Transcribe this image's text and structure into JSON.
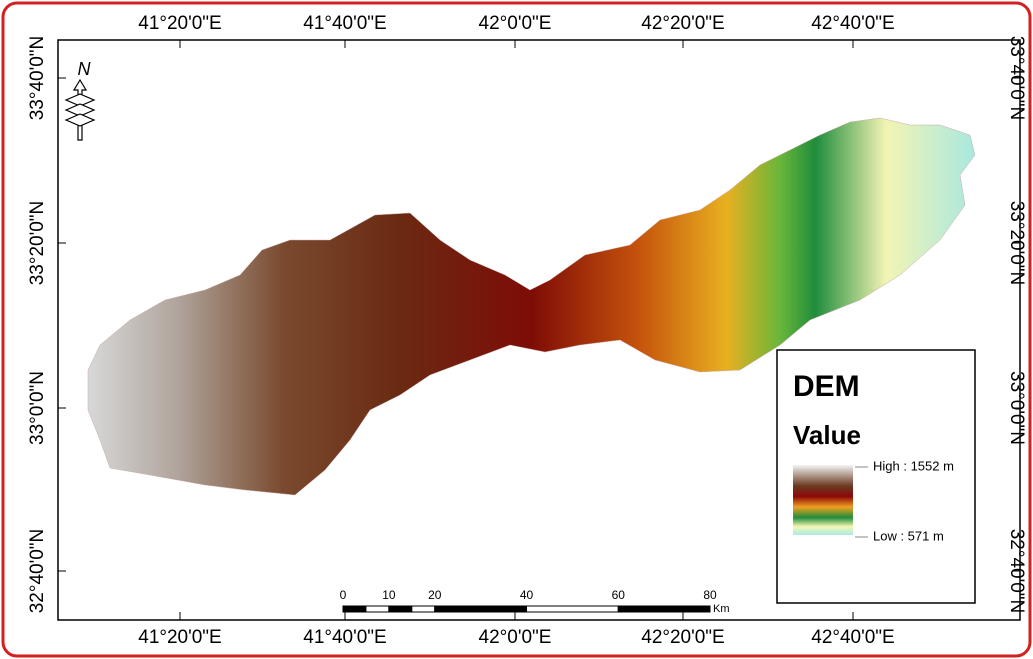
{
  "map": {
    "top_labels": [
      "41°20'0\"E",
      "41°40'0\"E",
      "42°0'0\"E",
      "42°20'0\"E",
      "42°40'0\"E"
    ],
    "bottom_labels": [
      "41°20'0\"E",
      "41°40'0\"E",
      "42°0'0\"E",
      "42°20'0\"E",
      "42°40'0\"E"
    ],
    "left_labels": [
      "33°40'0\"N",
      "33°20'0\"N",
      "33°0'0\"N",
      "32°40'0\"N"
    ],
    "right_labels": [
      "33°40'0\"N",
      "33°20'0\"N",
      "33°0'0\"N",
      "32°40'0\"N"
    ],
    "north": "N",
    "legend": {
      "title": "DEM",
      "subtitle": "Value",
      "high": "High : 1552 m",
      "low": "Low : 571 m"
    },
    "scale_bar": {
      "labels": [
        0,
        10,
        20,
        40,
        60,
        80
      ],
      "unit": "Km"
    }
  }
}
